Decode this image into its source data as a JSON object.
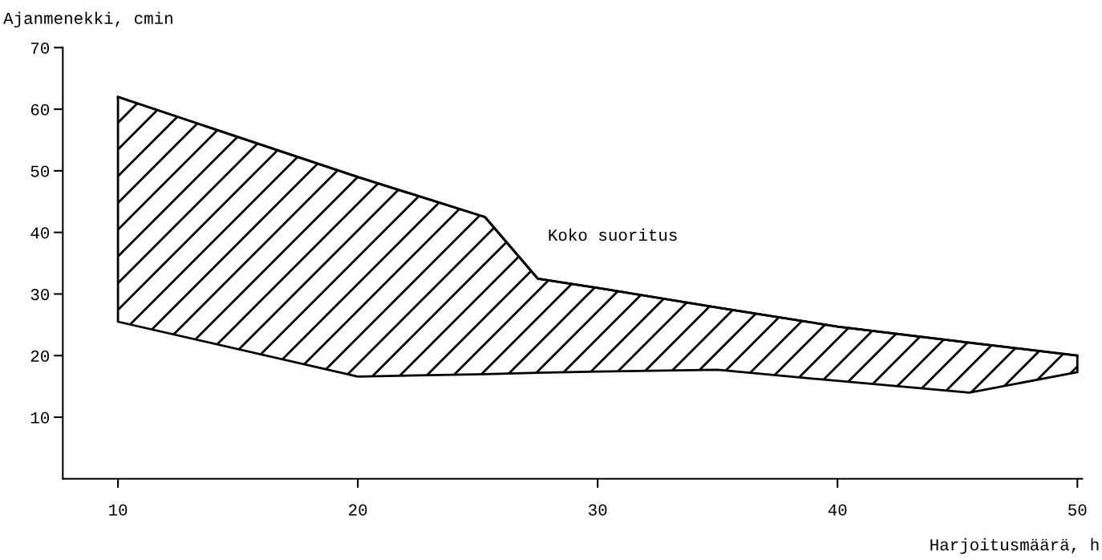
{
  "chart_data": {
    "type": "line",
    "xlabel": "Harjoitusmäärä, h",
    "ylabel": "Ajanmenekki, cmin",
    "series": [
      {
        "color": "#000000",
        "x": [
          10,
          20,
          25.3,
          27.5,
          30,
          35,
          40,
          45.5,
          50
        ],
        "values": [
          62,
          49,
          42.5,
          32.5,
          31,
          27.8,
          24.7,
          22.1,
          20
        ],
        "upper": [
          62,
          49,
          42.5,
          32.5,
          31,
          27.8,
          24.7,
          22.1,
          20
        ],
        "lower": [
          25.5,
          16.6,
          17.0,
          17.2,
          17.4,
          17.7,
          15.9,
          14.0,
          17.3
        ]
      }
    ],
    "annotations": [
      "Koko suoritus"
    ],
    "xlim": [
      7.7,
      50.2
    ],
    "xticks": [
      10,
      20,
      30,
      40,
      50
    ],
    "ylim": [
      0,
      70
    ],
    "yticks": [
      10,
      20,
      30,
      40,
      50,
      60,
      70
    ],
    "grid": false,
    "legend": false
  }
}
